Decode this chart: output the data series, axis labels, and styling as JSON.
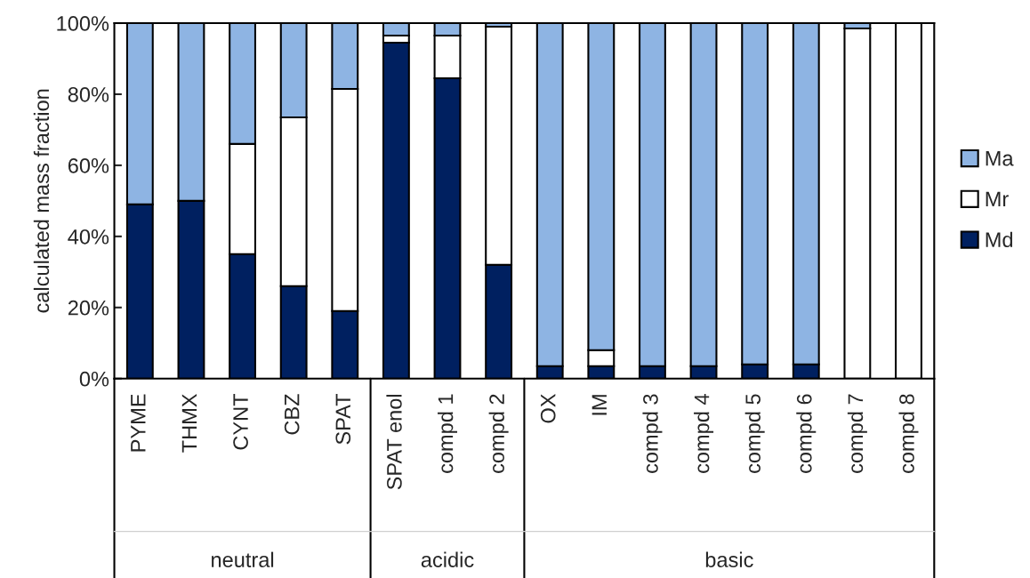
{
  "chart_data": {
    "type": "bar",
    "stacked": true,
    "ylabel": "calculated mass fraction",
    "categories": [
      "PYME",
      "THMX",
      "CYNT",
      "CBZ",
      "SPAT",
      "SPAT enol",
      "compd 1",
      "compd 2",
      "OX",
      "IM",
      "compd 3",
      "compd 4",
      "compd 5",
      "compd 6",
      "compd 7",
      "compd 8"
    ],
    "series": [
      {
        "name": "Md",
        "color": "#002060",
        "values": [
          49,
          50,
          35,
          26,
          19,
          94.5,
          84.5,
          32,
          3.5,
          3.5,
          3.5,
          3.5,
          4,
          4,
          0,
          0
        ]
      },
      {
        "name": "Mr",
        "color": "#ffffff",
        "values": [
          0,
          0,
          31,
          47.5,
          62.5,
          2,
          12,
          67,
          0,
          4.5,
          0,
          0,
          0,
          0,
          98.5,
          100
        ]
      },
      {
        "name": "Ma",
        "color": "#8eb4e3",
        "values": [
          51,
          50,
          34,
          26.5,
          18.5,
          3.5,
          3.5,
          1,
          96.5,
          92,
          96.5,
          96.5,
          96,
          96,
          1.5,
          0
        ]
      }
    ],
    "ylim": [
      0,
      100
    ],
    "yticks": [
      {
        "value": 0,
        "label": "0%"
      },
      {
        "value": 20,
        "label": "20%"
      },
      {
        "value": 40,
        "label": "40%"
      },
      {
        "value": 60,
        "label": "60%"
      },
      {
        "value": 80,
        "label": "80%"
      },
      {
        "value": 100,
        "label": "100%"
      }
    ],
    "annotations": [
      "neutral",
      "acidic",
      "basic"
    ],
    "grid": false,
    "legend": "right"
  }
}
